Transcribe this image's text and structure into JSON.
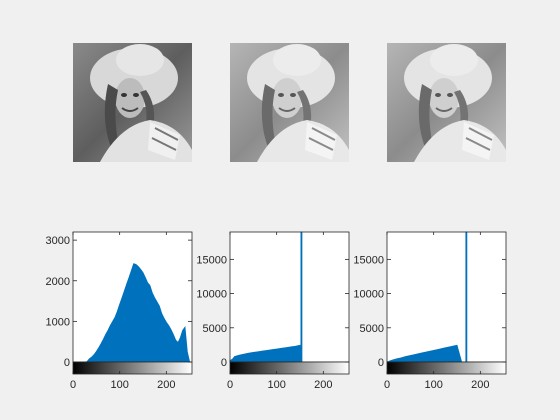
{
  "figure": {
    "background": "#f0f0f0",
    "axes_color": "#262626",
    "bar_color": "#0072bd",
    "image_panels": [
      {
        "id": "original",
        "content": "grayscale portrait photo of a smiling woman wearing a wide-brimmed hat, normal contrast"
      },
      {
        "id": "equalized-1",
        "content": "same portrait, equalized / posterized with light flat tones"
      },
      {
        "id": "equalized-2",
        "content": "same portrait, equalized / posterized with light flat tones"
      }
    ]
  },
  "chart_data": [
    {
      "type": "bar",
      "title": "",
      "xlabel": "",
      "ylabel": "",
      "xlim": [
        0,
        255
      ],
      "ylim": [
        0,
        3200
      ],
      "xticks": [
        0,
        100,
        200
      ],
      "yticks": [
        0,
        1000,
        2000,
        3000
      ],
      "colorbar": "black-to-white gradient beneath x axis",
      "series": [
        {
          "x": [
            15,
            25,
            30,
            35,
            40,
            45,
            50,
            55,
            60,
            65,
            70,
            75,
            80,
            85,
            90,
            95,
            100,
            105,
            110,
            115,
            120,
            125,
            130,
            135,
            140,
            145,
            150,
            155,
            160,
            165,
            170,
            175,
            180,
            185,
            190,
            195,
            200,
            205,
            210,
            215,
            220,
            225,
            230,
            235,
            240,
            245,
            250
          ],
          "values": [
            0,
            0,
            10,
            80,
            120,
            180,
            260,
            350,
            450,
            560,
            680,
            780,
            900,
            1000,
            1100,
            1250,
            1420,
            1580,
            1750,
            1920,
            2080,
            2250,
            2420,
            2400,
            2350,
            2280,
            2200,
            2080,
            1950,
            1880,
            1700,
            1580,
            1480,
            1380,
            1200,
            1080,
            980,
            900,
            800,
            680,
            540,
            480,
            600,
            780,
            860,
            250,
            0
          ]
        }
      ]
    },
    {
      "type": "bar",
      "title": "",
      "xlabel": "",
      "ylabel": "",
      "xlim": [
        0,
        255
      ],
      "ylim": [
        0,
        19000
      ],
      "xticks": [
        0,
        100,
        200
      ],
      "yticks": [
        0,
        5000,
        10000,
        15000
      ],
      "colorbar": "black-to-white gradient beneath x axis",
      "series": [
        {
          "x": [
            0,
            5,
            10,
            20,
            30,
            40,
            50,
            60,
            70,
            80,
            90,
            100,
            110,
            120,
            130,
            140,
            150,
            153,
            157
          ],
          "values": [
            200,
            400,
            800,
            1000,
            1150,
            1300,
            1400,
            1500,
            1600,
            1700,
            1800,
            1900,
            2000,
            2100,
            2200,
            2300,
            2450,
            19000,
            0
          ]
        }
      ]
    },
    {
      "type": "bar",
      "title": "",
      "xlabel": "",
      "ylabel": "",
      "xlim": [
        0,
        255
      ],
      "ylim": [
        0,
        19000
      ],
      "xticks": [
        0,
        100,
        200
      ],
      "yticks": [
        0,
        5000,
        10000,
        15000
      ],
      "colorbar": "black-to-white gradient beneath x axis",
      "series": [
        {
          "x": [
            0,
            10,
            20,
            30,
            40,
            50,
            60,
            70,
            80,
            90,
            100,
            110,
            120,
            130,
            140,
            150,
            160,
            170,
            175
          ],
          "values": [
            0,
            250,
            450,
            600,
            800,
            950,
            1100,
            1250,
            1400,
            1550,
            1700,
            1850,
            2000,
            2150,
            2300,
            2450,
            0,
            19000,
            0
          ]
        }
      ]
    }
  ]
}
